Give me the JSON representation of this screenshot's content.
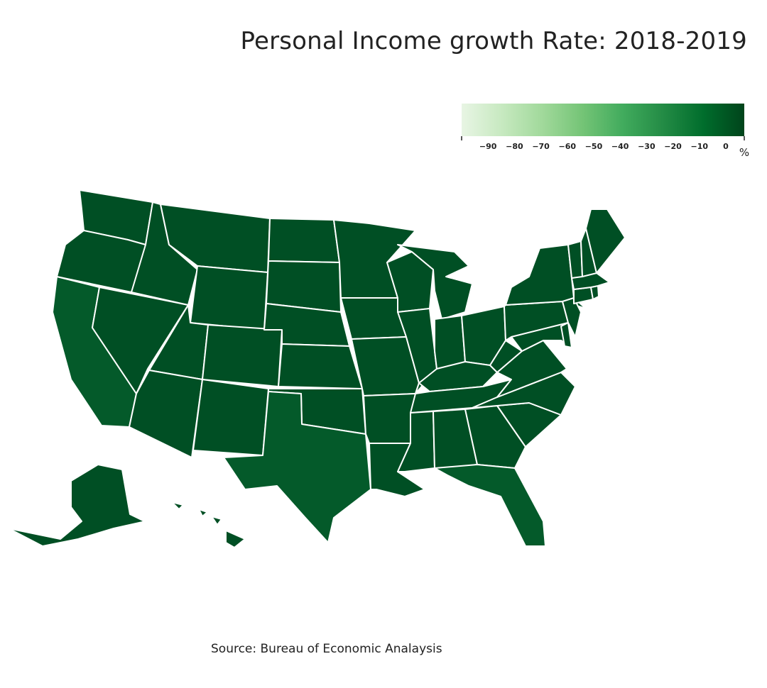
{
  "title": "Personal Income growth Rate: 2018-2019",
  "source": "Source: Bureau of Economic Analaysis",
  "legend": {
    "unit": "%",
    "min": -100,
    "max": 7,
    "ticks": [
      -90,
      -80,
      -70,
      -60,
      -50,
      -40,
      -30,
      -20,
      -10,
      0
    ],
    "tick_labels": [
      "−90",
      "−80",
      "−70",
      "−60",
      "−50",
      "−40",
      "−30",
      "−20",
      "−10",
      "0"
    ],
    "color_stops": [
      "#e8f5e4",
      "#c7e9c0",
      "#a1d99b",
      "#74c476",
      "#41ab5d",
      "#238b45",
      "#006d2c",
      "#00441b"
    ]
  },
  "colors": {
    "dark": "#004f24",
    "medium": "#045a2a",
    "border": "#ffffff"
  },
  "states": [
    {
      "id": "WA",
      "name": "Washington",
      "color": "dark"
    },
    {
      "id": "OR",
      "name": "Oregon",
      "color": "dark"
    },
    {
      "id": "CA",
      "name": "California",
      "color": "medium"
    },
    {
      "id": "NV",
      "name": "Nevada",
      "color": "dark"
    },
    {
      "id": "ID",
      "name": "Idaho",
      "color": "dark"
    },
    {
      "id": "MT",
      "name": "Montana",
      "color": "dark"
    },
    {
      "id": "WY",
      "name": "Wyoming",
      "color": "dark"
    },
    {
      "id": "UT",
      "name": "Utah",
      "color": "dark"
    },
    {
      "id": "AZ",
      "name": "Arizona",
      "color": "dark"
    },
    {
      "id": "CO",
      "name": "Colorado",
      "color": "dark"
    },
    {
      "id": "NM",
      "name": "New Mexico",
      "color": "dark"
    },
    {
      "id": "ND",
      "name": "North Dakota",
      "color": "dark"
    },
    {
      "id": "SD",
      "name": "South Dakota",
      "color": "dark"
    },
    {
      "id": "NE",
      "name": "Nebraska",
      "color": "dark"
    },
    {
      "id": "KS",
      "name": "Kansas",
      "color": "dark"
    },
    {
      "id": "OK",
      "name": "Oklahoma",
      "color": "dark"
    },
    {
      "id": "TX",
      "name": "Texas",
      "color": "medium"
    },
    {
      "id": "MN",
      "name": "Minnesota",
      "color": "dark"
    },
    {
      "id": "IA",
      "name": "Iowa",
      "color": "dark"
    },
    {
      "id": "MO",
      "name": "Missouri",
      "color": "dark"
    },
    {
      "id": "AR",
      "name": "Arkansas",
      "color": "dark"
    },
    {
      "id": "LA",
      "name": "Louisiana",
      "color": "dark"
    },
    {
      "id": "WI",
      "name": "Wisconsin",
      "color": "dark"
    },
    {
      "id": "IL",
      "name": "Illinois",
      "color": "dark"
    },
    {
      "id": "MI",
      "name": "Michigan",
      "color": "dark"
    },
    {
      "id": "IN",
      "name": "Indiana",
      "color": "dark"
    },
    {
      "id": "OH",
      "name": "Ohio",
      "color": "dark"
    },
    {
      "id": "KY",
      "name": "Kentucky",
      "color": "dark"
    },
    {
      "id": "TN",
      "name": "Tennessee",
      "color": "dark"
    },
    {
      "id": "MS",
      "name": "Mississippi",
      "color": "dark"
    },
    {
      "id": "AL",
      "name": "Alabama",
      "color": "dark"
    },
    {
      "id": "GA",
      "name": "Georgia",
      "color": "dark"
    },
    {
      "id": "FL",
      "name": "Florida",
      "color": "medium"
    },
    {
      "id": "SC",
      "name": "South Carolina",
      "color": "dark"
    },
    {
      "id": "NC",
      "name": "North Carolina",
      "color": "dark"
    },
    {
      "id": "VA",
      "name": "Virginia",
      "color": "dark"
    },
    {
      "id": "WV",
      "name": "West Virginia",
      "color": "dark"
    },
    {
      "id": "PA",
      "name": "Pennsylvania",
      "color": "dark"
    },
    {
      "id": "NY",
      "name": "New York",
      "color": "dark"
    },
    {
      "id": "MD",
      "name": "Maryland",
      "color": "dark"
    },
    {
      "id": "DE",
      "name": "Delaware",
      "color": "dark"
    },
    {
      "id": "NJ",
      "name": "New Jersey",
      "color": "dark"
    },
    {
      "id": "CT",
      "name": "Connecticut",
      "color": "dark"
    },
    {
      "id": "RI",
      "name": "Rhode Island",
      "color": "dark"
    },
    {
      "id": "MA",
      "name": "Massachusetts",
      "color": "dark"
    },
    {
      "id": "VT",
      "name": "Vermont",
      "color": "dark"
    },
    {
      "id": "NH",
      "name": "New Hampshire",
      "color": "dark"
    },
    {
      "id": "ME",
      "name": "Maine",
      "color": "dark"
    },
    {
      "id": "AK",
      "name": "Alaska",
      "color": "dark"
    },
    {
      "id": "HI",
      "name": "Hawaii",
      "color": "dark"
    }
  ]
}
